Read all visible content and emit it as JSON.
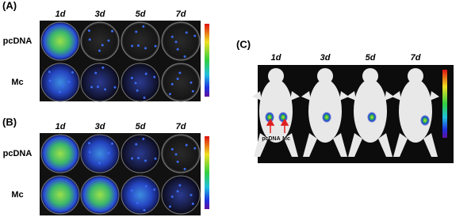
{
  "panels": [
    {
      "label": "(A)",
      "columns": [
        "1d",
        "3d",
        "5d",
        "7d"
      ],
      "rows": [
        "pcDNA",
        "Mc"
      ]
    },
    {
      "label": "(B)",
      "columns": [
        "1d",
        "3d",
        "5d",
        "7d"
      ],
      "rows": [
        "pcDNA",
        "Mc"
      ]
    },
    {
      "label": "(C)",
      "columns": [
        "1d",
        "3d",
        "5d",
        "7d"
      ],
      "annotations": [
        "pcDNA",
        "Mc"
      ]
    }
  ]
}
